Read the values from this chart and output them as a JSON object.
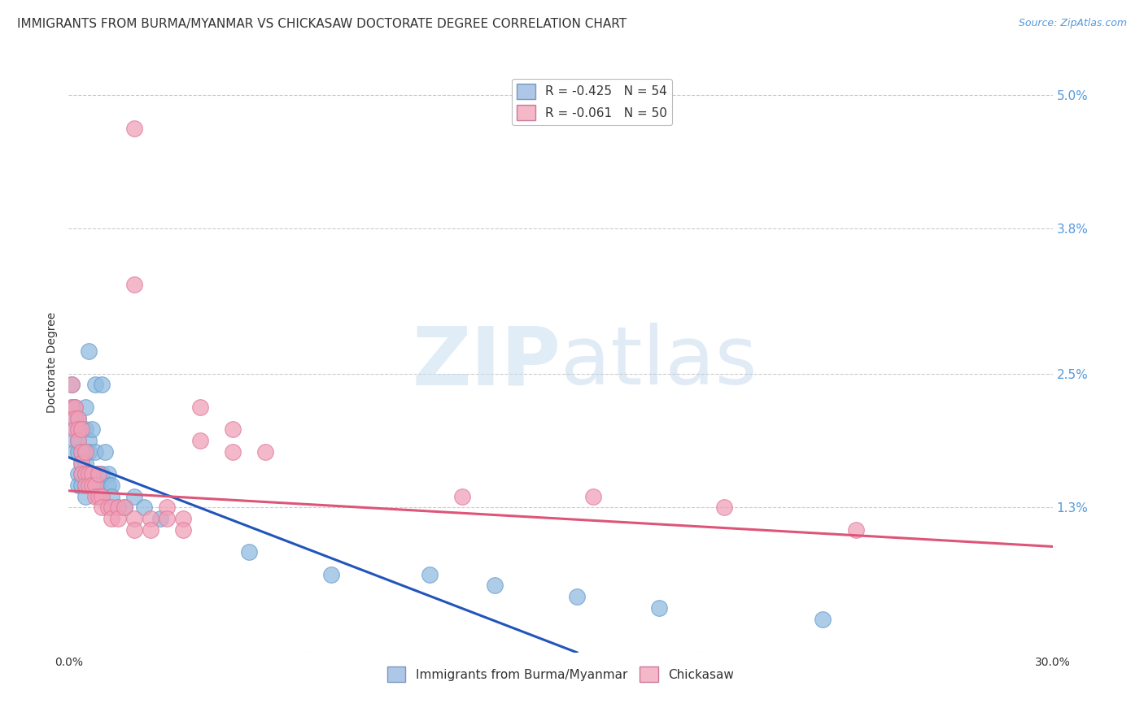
{
  "title": "IMMIGRANTS FROM BURMA/MYANMAR VS CHICKASAW DOCTORATE DEGREE CORRELATION CHART",
  "source": "Source: ZipAtlas.com",
  "ylabel": "Doctorate Degree",
  "yticks": [
    0.0,
    0.013,
    0.025,
    0.038,
    0.05
  ],
  "ytick_labels": [
    "",
    "1.3%",
    "2.5%",
    "3.8%",
    "5.0%"
  ],
  "xlim": [
    0.0,
    0.3
  ],
  "ylim": [
    0.0,
    0.052
  ],
  "legend_line1": "R = -0.425   N = 54",
  "legend_line2": "R = -0.061   N = 50",
  "legend_bottom_1": "Immigrants from Burma/Myanmar",
  "legend_bottom_2": "Chickasaw",
  "watermark_zip": "ZIP",
  "watermark_atlas": "atlas",
  "blue_color": "#90bce0",
  "pink_color": "#f0a0b8",
  "blue_line_color": "#2255bb",
  "pink_line_color": "#dd5577",
  "blue_scatter": [
    [
      0.001,
      0.024
    ],
    [
      0.001,
      0.022
    ],
    [
      0.001,
      0.021
    ],
    [
      0.002,
      0.022
    ],
    [
      0.002,
      0.02
    ],
    [
      0.002,
      0.019
    ],
    [
      0.002,
      0.018
    ],
    [
      0.003,
      0.021
    ],
    [
      0.003,
      0.019
    ],
    [
      0.003,
      0.018
    ],
    [
      0.003,
      0.016
    ],
    [
      0.003,
      0.015
    ],
    [
      0.004,
      0.02
    ],
    [
      0.004,
      0.018
    ],
    [
      0.004,
      0.017
    ],
    [
      0.004,
      0.016
    ],
    [
      0.004,
      0.015
    ],
    [
      0.005,
      0.022
    ],
    [
      0.005,
      0.02
    ],
    [
      0.005,
      0.018
    ],
    [
      0.005,
      0.017
    ],
    [
      0.005,
      0.016
    ],
    [
      0.005,
      0.015
    ],
    [
      0.005,
      0.014
    ],
    [
      0.006,
      0.027
    ],
    [
      0.006,
      0.019
    ],
    [
      0.006,
      0.018
    ],
    [
      0.007,
      0.02
    ],
    [
      0.007,
      0.016
    ],
    [
      0.007,
      0.015
    ],
    [
      0.008,
      0.024
    ],
    [
      0.008,
      0.018
    ],
    [
      0.008,
      0.016
    ],
    [
      0.009,
      0.016
    ],
    [
      0.009,
      0.015
    ],
    [
      0.01,
      0.024
    ],
    [
      0.01,
      0.016
    ],
    [
      0.011,
      0.018
    ],
    [
      0.012,
      0.016
    ],
    [
      0.012,
      0.015
    ],
    [
      0.013,
      0.015
    ],
    [
      0.013,
      0.014
    ],
    [
      0.015,
      0.013
    ],
    [
      0.017,
      0.013
    ],
    [
      0.02,
      0.014
    ],
    [
      0.023,
      0.013
    ],
    [
      0.028,
      0.012
    ],
    [
      0.055,
      0.009
    ],
    [
      0.08,
      0.007
    ],
    [
      0.11,
      0.007
    ],
    [
      0.13,
      0.006
    ],
    [
      0.155,
      0.005
    ],
    [
      0.18,
      0.004
    ],
    [
      0.23,
      0.003
    ]
  ],
  "pink_scatter": [
    [
      0.02,
      0.047
    ],
    [
      0.02,
      0.033
    ],
    [
      0.001,
      0.024
    ],
    [
      0.001,
      0.022
    ],
    [
      0.002,
      0.022
    ],
    [
      0.002,
      0.021
    ],
    [
      0.002,
      0.02
    ],
    [
      0.003,
      0.021
    ],
    [
      0.003,
      0.02
    ],
    [
      0.003,
      0.019
    ],
    [
      0.004,
      0.02
    ],
    [
      0.004,
      0.018
    ],
    [
      0.004,
      0.017
    ],
    [
      0.004,
      0.016
    ],
    [
      0.005,
      0.018
    ],
    [
      0.005,
      0.016
    ],
    [
      0.005,
      0.015
    ],
    [
      0.006,
      0.016
    ],
    [
      0.006,
      0.015
    ],
    [
      0.007,
      0.016
    ],
    [
      0.007,
      0.015
    ],
    [
      0.008,
      0.015
    ],
    [
      0.008,
      0.014
    ],
    [
      0.009,
      0.016
    ],
    [
      0.009,
      0.014
    ],
    [
      0.01,
      0.014
    ],
    [
      0.01,
      0.013
    ],
    [
      0.012,
      0.013
    ],
    [
      0.013,
      0.013
    ],
    [
      0.013,
      0.012
    ],
    [
      0.015,
      0.013
    ],
    [
      0.015,
      0.012
    ],
    [
      0.017,
      0.013
    ],
    [
      0.02,
      0.012
    ],
    [
      0.02,
      0.011
    ],
    [
      0.025,
      0.012
    ],
    [
      0.025,
      0.011
    ],
    [
      0.03,
      0.013
    ],
    [
      0.03,
      0.012
    ],
    [
      0.035,
      0.012
    ],
    [
      0.035,
      0.011
    ],
    [
      0.04,
      0.022
    ],
    [
      0.04,
      0.019
    ],
    [
      0.05,
      0.02
    ],
    [
      0.05,
      0.018
    ],
    [
      0.06,
      0.018
    ],
    [
      0.12,
      0.014
    ],
    [
      0.16,
      0.014
    ],
    [
      0.2,
      0.013
    ],
    [
      0.24,
      0.011
    ]
  ],
  "blue_line_x": [
    0.0,
    0.155
  ],
  "blue_line_y": [
    0.0175,
    0.0
  ],
  "pink_line_x": [
    0.0,
    0.3
  ],
  "pink_line_y": [
    0.0145,
    0.0095
  ],
  "grid_color": "#cccccc",
  "background_color": "#ffffff",
  "title_fontsize": 11,
  "source_fontsize": 9,
  "tick_fontsize": 10,
  "ylabel_fontsize": 10
}
